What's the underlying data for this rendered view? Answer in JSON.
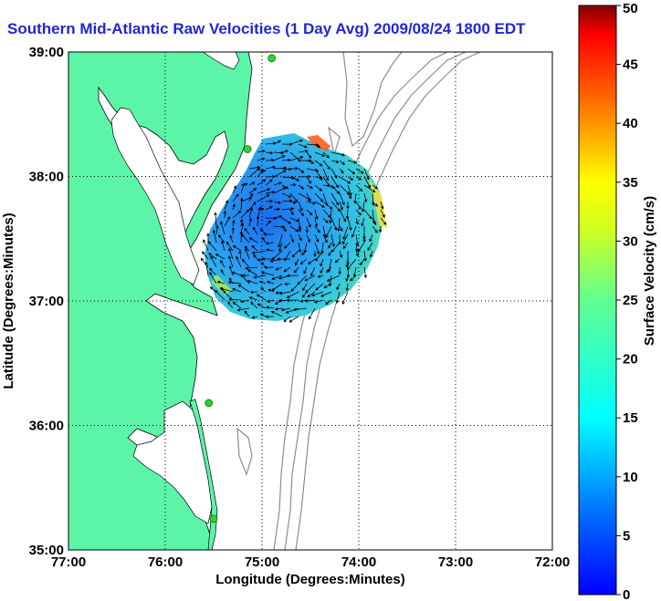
{
  "title": "Southern Mid-Atlantic Raw Velocities (1 Day Avg) 2009/08/24 1800 EDT",
  "map": {
    "xlabel": "Longitude (Degrees:Minutes)",
    "ylabel": "Latitude (Degrees:Minutes)",
    "xticks": [
      "77:00",
      "76:00",
      "75:00",
      "74:00",
      "73:00",
      "72:00"
    ],
    "yticks": [
      "39:00",
      "38:00",
      "37:00",
      "36:00",
      "35:00"
    ],
    "lon_range": [
      -77,
      -72
    ],
    "lat_range": [
      35,
      39
    ],
    "grid": "dotted",
    "colors": {
      "land": "#5cf5a8",
      "water": "#ffffff",
      "coast": "#000000",
      "bathymetry": "#8c8c8c",
      "site_marker": "#2dd12d"
    }
  },
  "colorbar": {
    "label": "Surface Velocity (cm/s)",
    "ticks": [
      "0",
      "5",
      "10",
      "15",
      "20",
      "25",
      "30",
      "35",
      "40",
      "45",
      "50"
    ],
    "range": [
      0,
      50
    ],
    "colormap": "jet"
  },
  "sites": [
    {
      "lon": -74.9,
      "lat": 38.95
    },
    {
      "lon": -75.15,
      "lat": 38.22
    },
    {
      "lon": -75.55,
      "lat": 36.18
    },
    {
      "lon": -75.5,
      "lat": 35.25
    }
  ]
}
